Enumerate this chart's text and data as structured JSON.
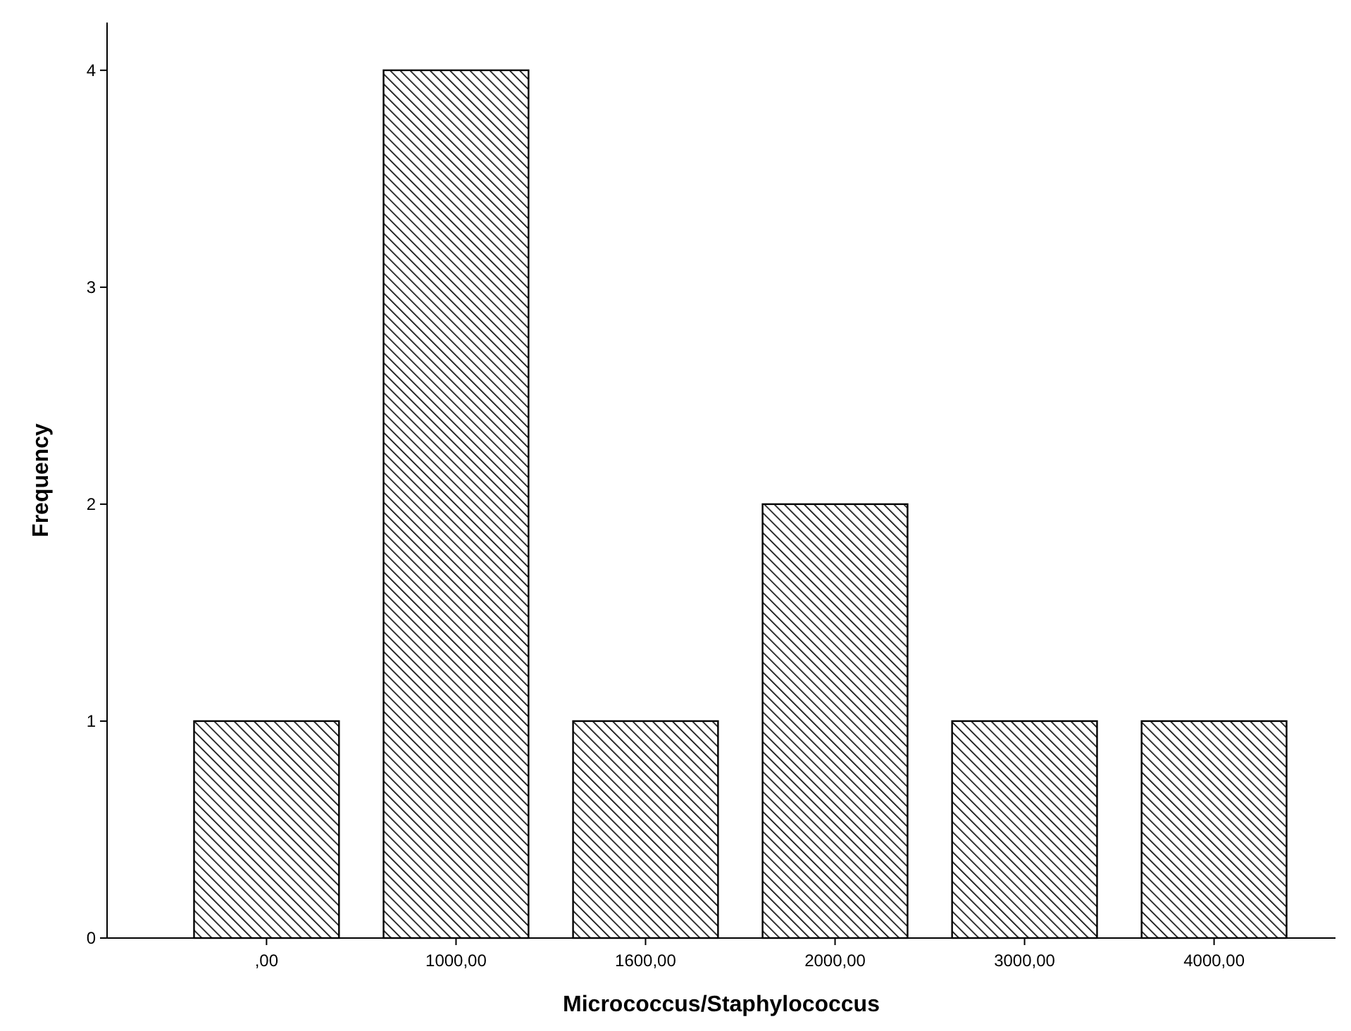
{
  "chart_data": {
    "type": "bar",
    "xlabel": "Micrococcus/Staphylococcus",
    "ylabel": "Frequency",
    "categories": [
      ",00",
      "1000,00",
      "1600,00",
      "2000,00",
      "3000,00",
      "4000,00"
    ],
    "values": [
      1,
      4,
      1,
      2,
      1,
      1
    ],
    "color": "#000000",
    "ylim": [
      0,
      4.22
    ],
    "yticks": [
      0,
      1,
      2,
      3,
      4
    ],
    "grid": false
  }
}
